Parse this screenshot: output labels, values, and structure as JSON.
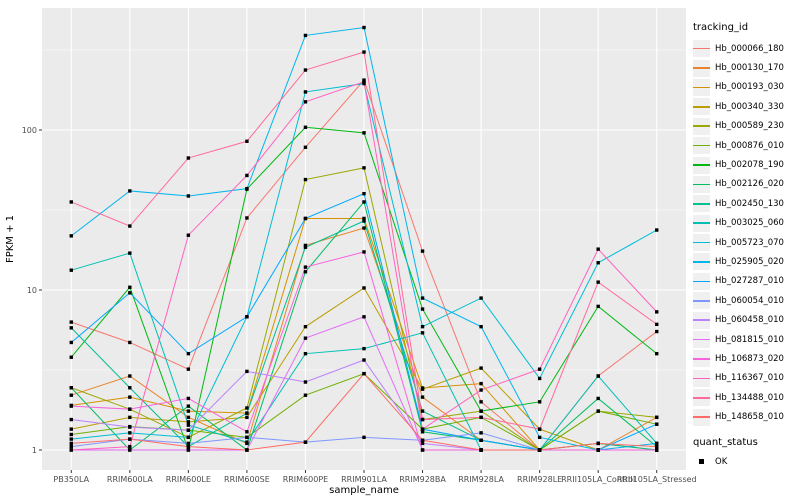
{
  "chart_data": {
    "type": "line",
    "title": "",
    "xlabel": "sample_name",
    "ylabel": "FPKM + 1",
    "yscale": "log10",
    "ylim": [
      1,
      560
    ],
    "y_ticks": [
      1,
      10,
      100
    ],
    "y_minor_ticks": [
      3.162,
      31.62,
      316.2
    ],
    "grid": "on",
    "legend_position": "right",
    "panel_bg": "#EBEBEB",
    "grid_color": "#FFFFFF",
    "point_color": "#000000",
    "point_shape": "filled-square",
    "categories": [
      "PB350LA",
      "RRIM600LA",
      "RRIM600LE",
      "RRIM600SE",
      "RRIM600PE",
      "RRIM901LA",
      "RRIM928BA",
      "RRIM928LA",
      "RRIM928LE",
      "RRII105LA_Control",
      "RRII105LA_Stressed"
    ],
    "legend": {
      "title": "tracking_id"
    },
    "quant_legend": {
      "title": "quant_status",
      "items": [
        "OK"
      ]
    },
    "series": [
      {
        "name": "Hb_000066_180",
        "color": "#F8766D",
        "values": [
          6.3,
          4.7,
          3.2,
          28.2,
          78,
          205,
          17.5,
          2.0,
          1.0,
          2.9,
          5.5
        ]
      },
      {
        "name": "Hb_000130_170",
        "color": "#E9842C",
        "values": [
          2.2,
          2.9,
          1.6,
          1.1,
          19,
          24.4,
          2.14,
          1.15,
          1.0,
          1.0,
          1.6
        ]
      },
      {
        "name": "Hb_000193_030",
        "color": "#D69100",
        "values": [
          1.9,
          2.14,
          1.75,
          1.7,
          28,
          28,
          2.44,
          2.6,
          1.0,
          1.1,
          1.0
        ]
      },
      {
        "name": "Hb_000340_330",
        "color": "#BC9D00",
        "values": [
          1.35,
          1.6,
          1.5,
          1.6,
          5.9,
          10.3,
          2.4,
          3.25,
          1.35,
          1.0,
          1.0
        ]
      },
      {
        "name": "Hb_000589_230",
        "color": "#9CA700",
        "values": [
          2.45,
          1.8,
          1.2,
          1.83,
          49,
          58,
          1.55,
          1.75,
          1.0,
          1.75,
          1.6
        ]
      },
      {
        "name": "Hb_000876_010",
        "color": "#6FB000",
        "values": [
          1.25,
          1.4,
          1.33,
          1.2,
          2.2,
          3.0,
          1.35,
          1.6,
          1.0,
          1.75,
          1.45
        ]
      },
      {
        "name": "Hb_002078_190",
        "color": "#00B813",
        "values": [
          3.8,
          10.4,
          1.0,
          42.7,
          104,
          96,
          7.6,
          1.75,
          2.0,
          7.9,
          4.0
        ]
      },
      {
        "name": "Hb_002126_020",
        "color": "#00BD61",
        "values": [
          2.45,
          1.0,
          1.88,
          1.0,
          13,
          35.5,
          1.3,
          1.15,
          1.0,
          2.1,
          1.05
        ]
      },
      {
        "name": "Hb_002450_130",
        "color": "#00C08E",
        "values": [
          5.8,
          2.45,
          1.05,
          1.7,
          18.5,
          27,
          1.75,
          1.15,
          1.0,
          1.1,
          1.0
        ]
      },
      {
        "name": "Hb_003025_060",
        "color": "#00C0B4",
        "values": [
          13.3,
          17,
          1.43,
          1.12,
          4.0,
          4.3,
          5.4,
          1.0,
          1.0,
          2.9,
          1.1
        ]
      },
      {
        "name": "Hb_005723_070",
        "color": "#00BDD4",
        "values": [
          1.17,
          1.28,
          1.2,
          6.8,
          173,
          195,
          5.9,
          8.9,
          2.8,
          14.8,
          23.7
        ]
      },
      {
        "name": "Hb_025905_020",
        "color": "#00B5EC",
        "values": [
          21.8,
          41.6,
          38.7,
          43,
          390,
          437,
          8.9,
          5.9,
          1.2,
          1.0,
          1.1
        ]
      },
      {
        "name": "Hb_027287_010",
        "color": "#00A7FF",
        "values": [
          4.7,
          9.6,
          4.0,
          6.8,
          28,
          40,
          1.35,
          1.15,
          1.0,
          1.0,
          1.45
        ]
      },
      {
        "name": "Hb_060054_010",
        "color": "#7F96FF",
        "values": [
          1.05,
          1.17,
          1.1,
          1.2,
          1.12,
          1.2,
          1.15,
          1.28,
          1.0,
          1.0,
          1.0
        ]
      },
      {
        "name": "Hb_060458_010",
        "color": "#BC81FF",
        "values": [
          1.55,
          1.39,
          1.33,
          3.1,
          2.66,
          3.65,
          1.1,
          1.0,
          1.0,
          1.0,
          1.0
        ]
      },
      {
        "name": "Hb_081815_010",
        "color": "#E26EF7",
        "values": [
          1.0,
          1.0,
          1.0,
          1.0,
          5.0,
          6.8,
          1.0,
          1.0,
          1.0,
          1.0,
          1.0
        ]
      },
      {
        "name": "Hb_106873_020",
        "color": "#F863DF",
        "values": [
          1.88,
          1.8,
          2.1,
          1.3,
          13.9,
          17.3,
          1.0,
          1.0,
          1.0,
          1.0,
          1.0
        ]
      },
      {
        "name": "Hb_116367_010",
        "color": "#FF62BF",
        "values": [
          1.0,
          1.05,
          22,
          52,
          150,
          200,
          1.35,
          2.37,
          3.2,
          18,
          7.3
        ]
      },
      {
        "name": "Hb_134488_010",
        "color": "#FF6A9A",
        "values": [
          35.5,
          25.1,
          66.8,
          85,
          237,
          307,
          1.55,
          1.6,
          1.35,
          11.2,
          6.1
        ]
      },
      {
        "name": "Hb_148658_010",
        "color": "#FF6C67",
        "values": [
          1.1,
          1.17,
          1.05,
          1.0,
          1.12,
          3.0,
          1.15,
          1.0,
          1.0,
          1.1,
          1.05
        ]
      }
    ]
  }
}
